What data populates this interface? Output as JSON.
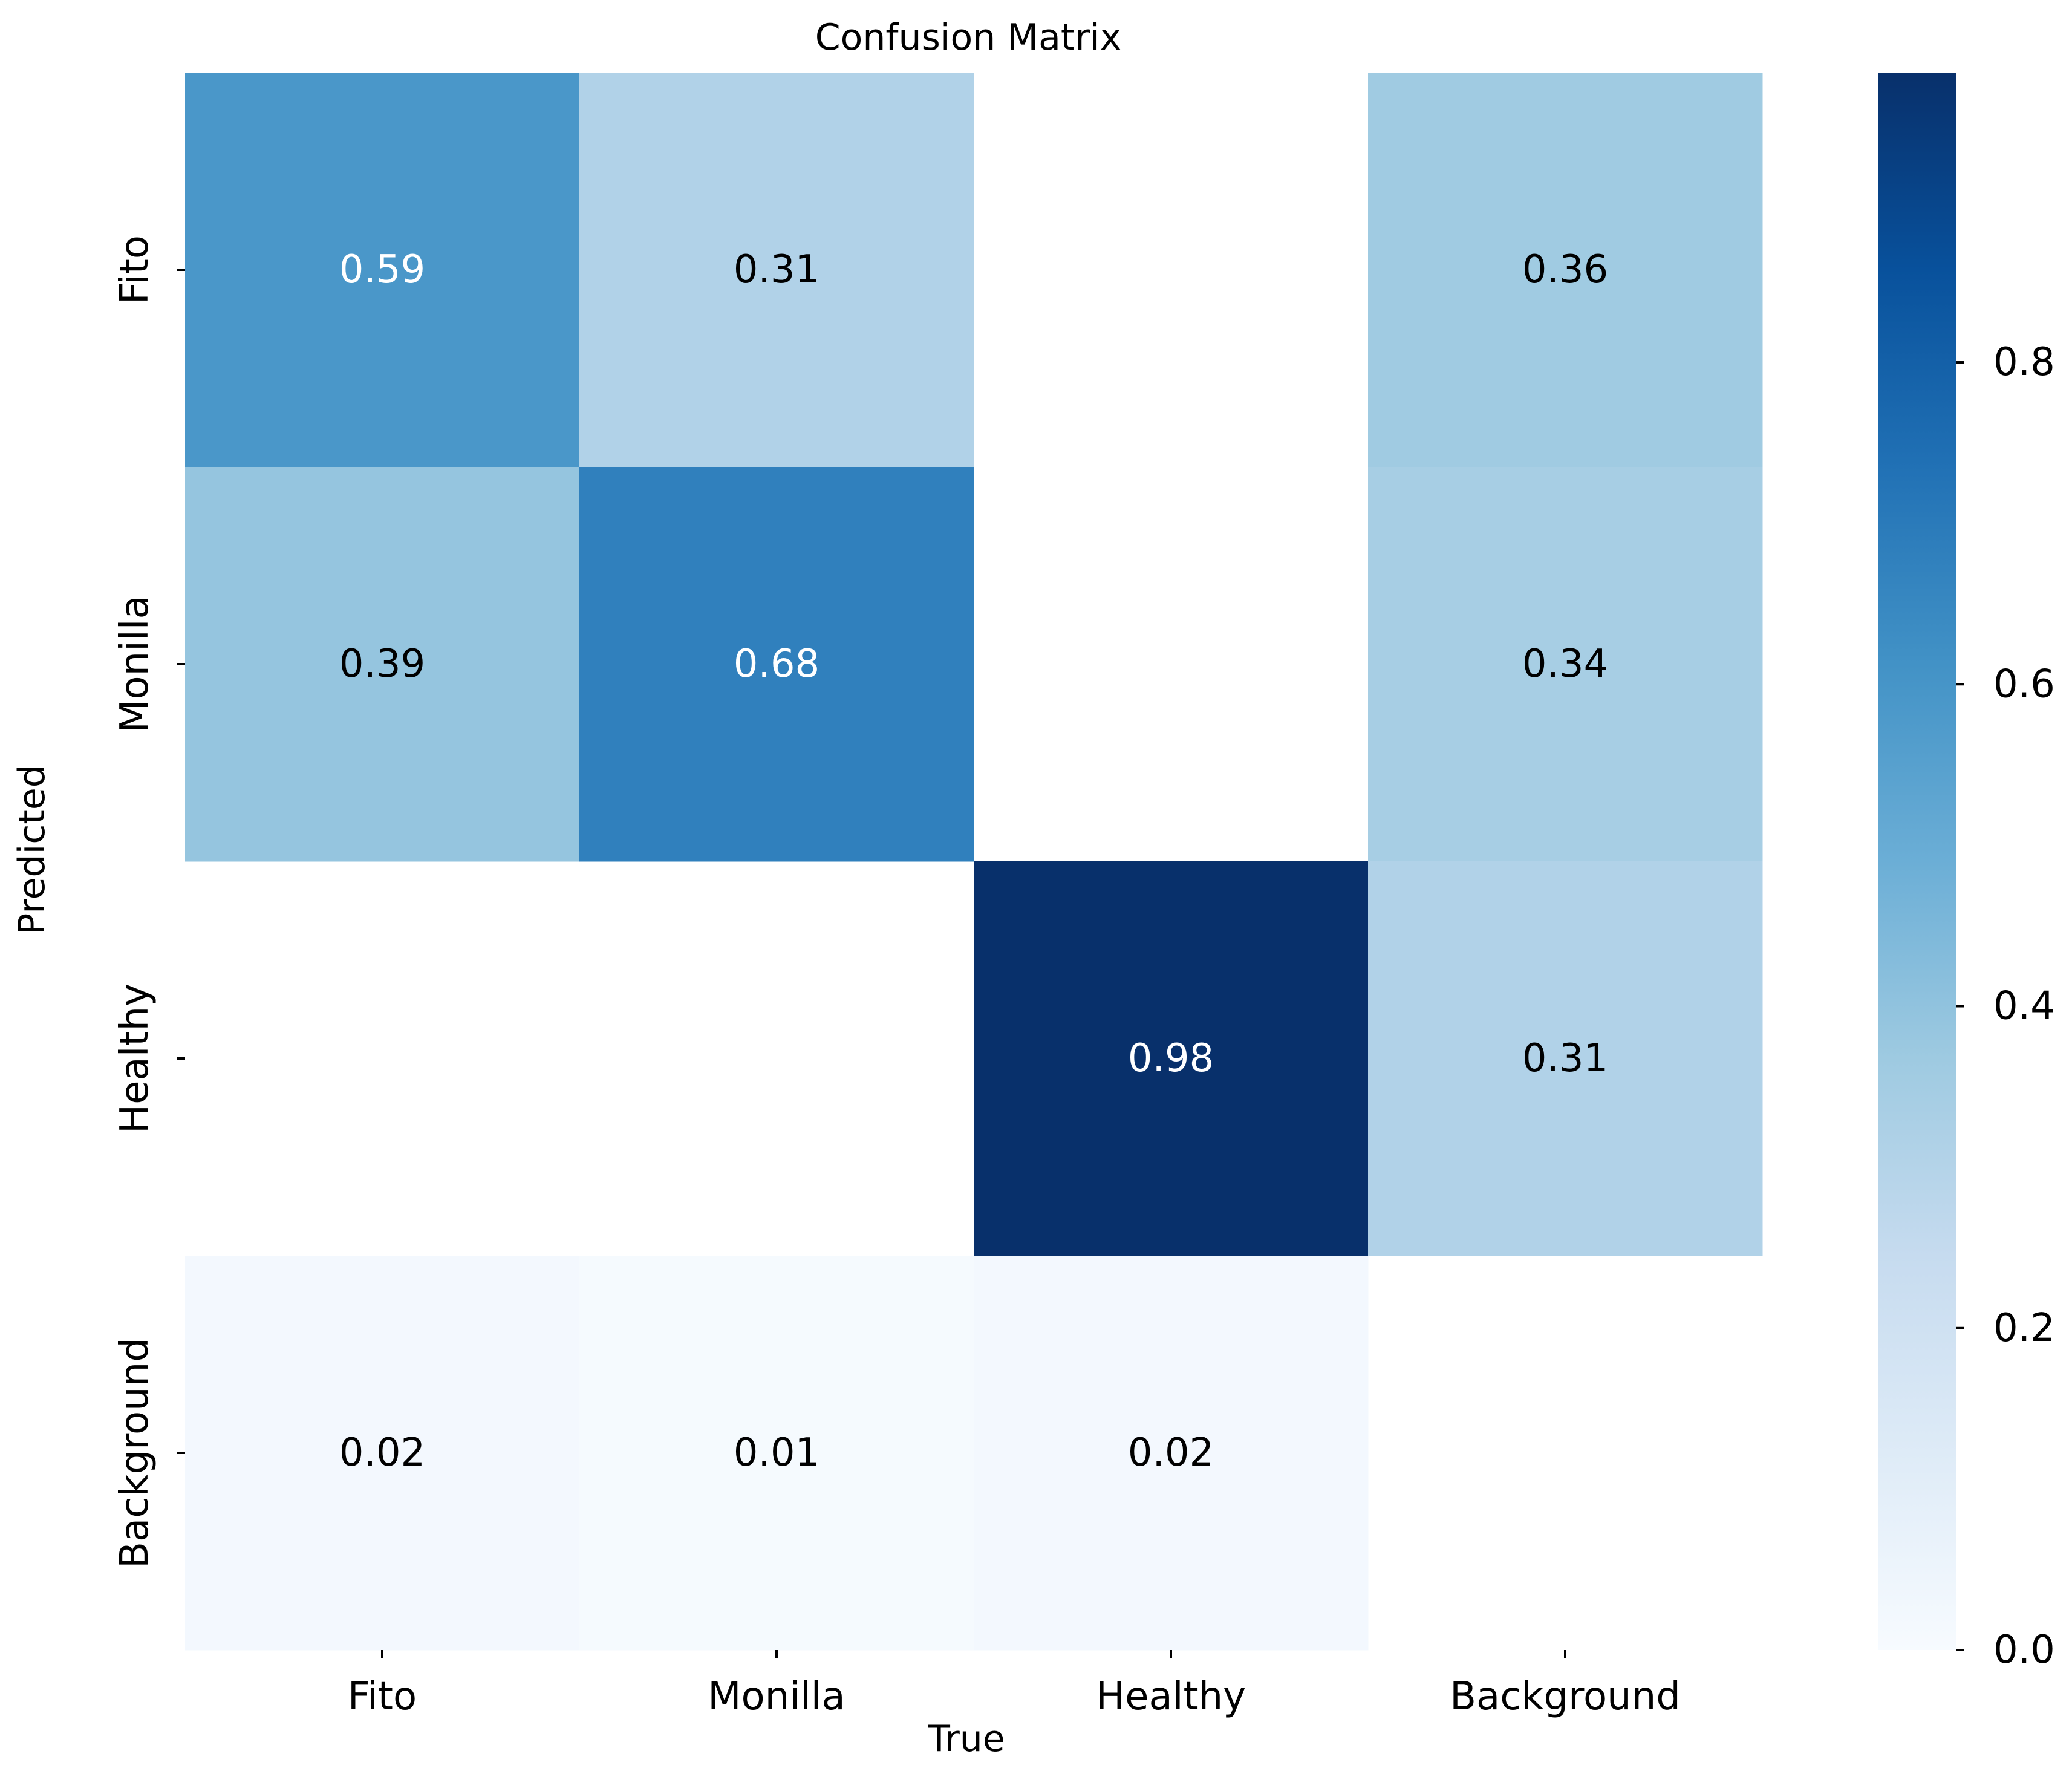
{
  "chart_data": {
    "type": "heatmap",
    "title": "Confusion Matrix",
    "xlabel": "True",
    "ylabel": "Predicted",
    "x_categories": [
      "Fito",
      "Monilla",
      "Healthy",
      "Background"
    ],
    "y_categories": [
      "Fito",
      "Monilla",
      "Healthy",
      "Background"
    ],
    "values": [
      [
        0.59,
        0.31,
        null,
        0.36
      ],
      [
        0.39,
        0.68,
        null,
        0.34
      ],
      [
        null,
        null,
        0.98,
        0.31
      ],
      [
        0.02,
        0.01,
        0.02,
        null
      ]
    ],
    "cell_labels": [
      [
        "0.59",
        "0.31",
        "",
        "0.36"
      ],
      [
        "0.39",
        "0.68",
        "",
        "0.34"
      ],
      [
        "",
        "",
        "0.98",
        "0.31"
      ],
      [
        "0.02",
        "0.01",
        "0.02",
        ""
      ]
    ],
    "colormap": "Blues",
    "vmin": 0.0,
    "vmax": 0.98,
    "colorbar_ticks": [
      0.0,
      0.2,
      0.4,
      0.6,
      0.8
    ],
    "colorbar_tick_labels": [
      "0.0",
      "0.2",
      "0.4",
      "0.6",
      "0.8"
    ]
  }
}
